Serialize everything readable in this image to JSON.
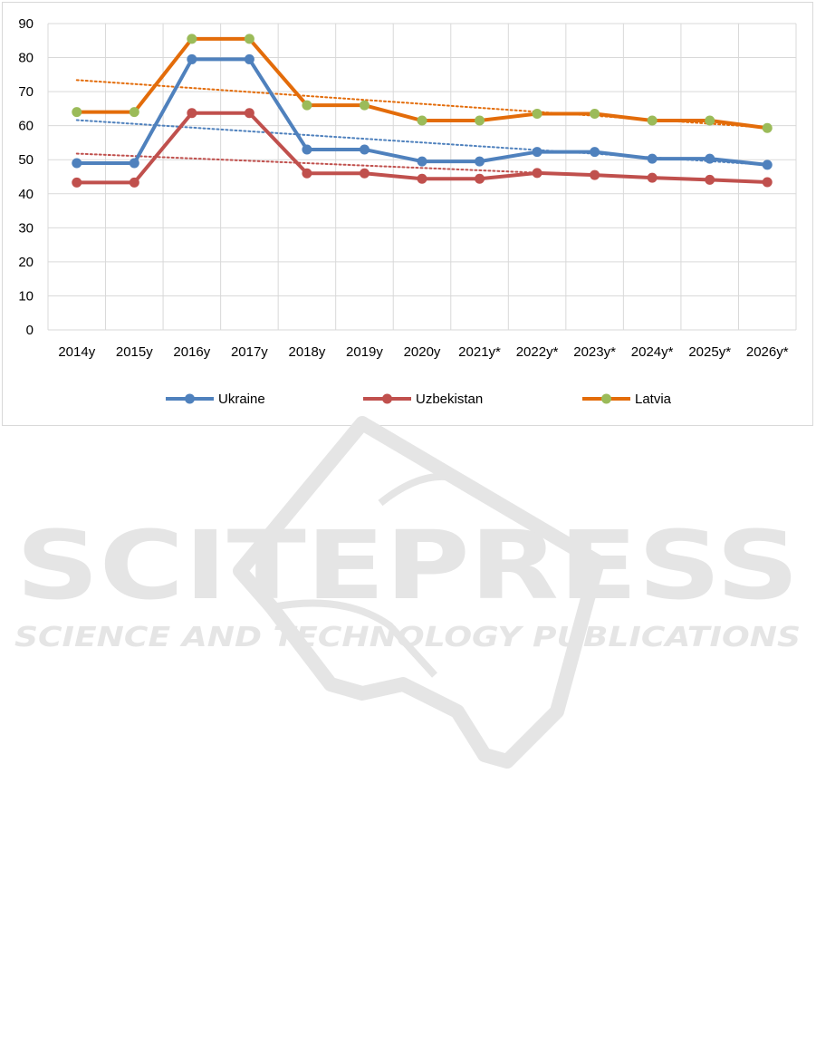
{
  "colors": {
    "ukraine": "#4f81bd",
    "uzbekistan": "#c0504d",
    "latvia_line": "#e36c0a",
    "latvia_marker": "#9bbb59",
    "grid": "#d9d9d9",
    "watermark": "#e5e5e5"
  },
  "watermark": {
    "word": "SCITEPRESS",
    "tagline": "SCIENCE AND TECHNOLOGY PUBLICATIONS"
  },
  "chart_data": {
    "type": "line",
    "categories": [
      "2014y",
      "2015y",
      "2016y",
      "2017y",
      "2018y",
      "2019y",
      "2020y",
      "2021y*",
      "2022y*",
      "2023y*",
      "2024y*",
      "2025y*",
      "2026y*"
    ],
    "ylim": [
      0,
      90
    ],
    "yticks": [
      0,
      10,
      20,
      30,
      40,
      50,
      60,
      70,
      80,
      90
    ],
    "grid": true,
    "legend_position": "bottom",
    "trendlines": "linear, dotted, one per series",
    "series": [
      {
        "name": "Ukraine",
        "color": "#4f81bd",
        "marker_color": "#4f81bd",
        "values": [
          49,
          49,
          79.5,
          79.5,
          53,
          53,
          49.5,
          49.5,
          52.3,
          52.3,
          50.3,
          50.3,
          48.5
        ]
      },
      {
        "name": "Uzbekistan",
        "color": "#c0504d",
        "marker_color": "#c0504d",
        "values": [
          43.3,
          43.3,
          63.7,
          63.7,
          46,
          46,
          44.4,
          44.4,
          46.1,
          45.5,
          44.7,
          44.1,
          43.4
        ]
      },
      {
        "name": "Latvia",
        "color": "#e36c0a",
        "marker_color": "#9bbb59",
        "values": [
          64,
          64,
          85.5,
          85.5,
          66,
          66,
          61.5,
          61.5,
          63.5,
          63.5,
          61.5,
          61.5,
          59.3
        ]
      }
    ]
  }
}
